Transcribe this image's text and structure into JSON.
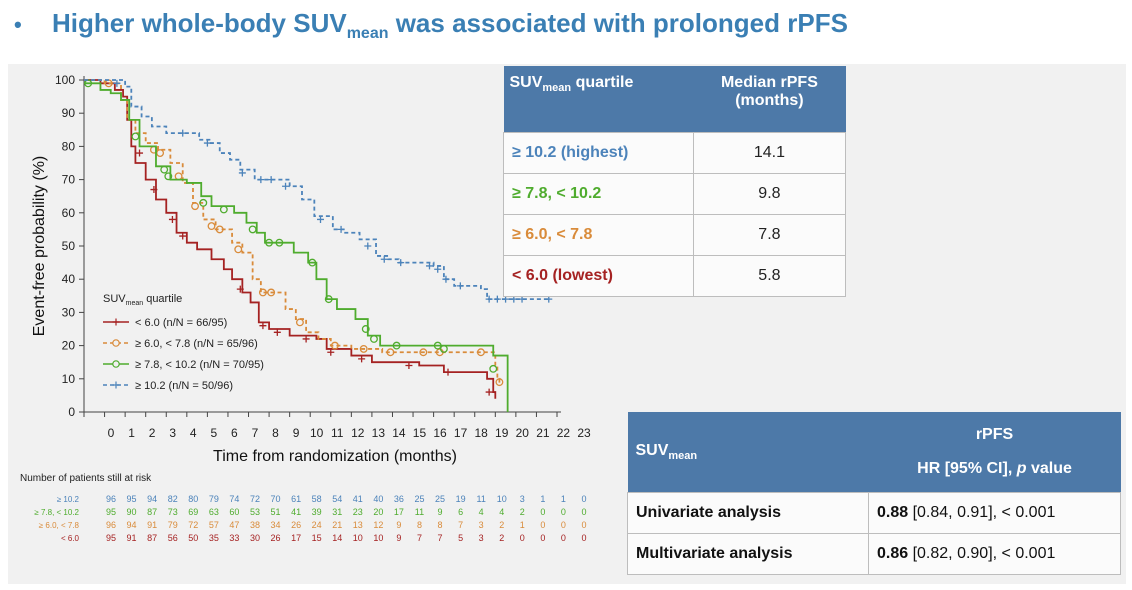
{
  "title": {
    "bullet": "•",
    "pre": "Higher whole-body SUV",
    "sub": "mean",
    "post": " was associated with prolonged rPFS"
  },
  "colors": {
    "title": "#3a7fb4",
    "header": "#4d79a8",
    "q_highest": "#4c83ba",
    "q_high": "#4fac2e",
    "q_mid": "#d98b3a",
    "q_low": "#a52222"
  },
  "chart_data": {
    "type": "line",
    "subtype": "kaplan-meier",
    "xlabel": "Time from randomization (months)",
    "ylabel": "Event-free probability (%)",
    "xlim": [
      0,
      23
    ],
    "ylim": [
      0,
      100
    ],
    "xticks": [
      0,
      1,
      2,
      3,
      4,
      5,
      6,
      7,
      8,
      9,
      10,
      11,
      12,
      13,
      14,
      15,
      16,
      17,
      18,
      19,
      20,
      21,
      22,
      23
    ],
    "yticks": [
      0,
      10,
      20,
      30,
      40,
      50,
      60,
      70,
      80,
      90,
      100
    ],
    "legend": {
      "title_pre": "SUV",
      "title_sub": "mean",
      "title_post": " quartile",
      "placement": "bottom-left"
    },
    "series": [
      {
        "name": "< 6.0 (n/N = 66/95)",
        "color": "#a52222",
        "marker": "plus",
        "dash": false,
        "points": [
          [
            0,
            100
          ],
          [
            0.8,
            99
          ],
          [
            1.5,
            97
          ],
          [
            1.9,
            95
          ],
          [
            2.1,
            88
          ],
          [
            2.3,
            80
          ],
          [
            2.5,
            75
          ],
          [
            3,
            70
          ],
          [
            3.5,
            64
          ],
          [
            4,
            60
          ],
          [
            4.5,
            54
          ],
          [
            5,
            51
          ],
          [
            5.5,
            49
          ],
          [
            6.2,
            46
          ],
          [
            6.8,
            43
          ],
          [
            7.2,
            40
          ],
          [
            7.7,
            36
          ],
          [
            8.1,
            33
          ],
          [
            8.5,
            27
          ],
          [
            9,
            25
          ],
          [
            10,
            23
          ],
          [
            11.3,
            22
          ],
          [
            11.8,
            19
          ],
          [
            13,
            17
          ],
          [
            14,
            15
          ],
          [
            16.3,
            14
          ],
          [
            17.5,
            12
          ],
          [
            19.6,
            10
          ],
          [
            19.9,
            6
          ],
          [
            20,
            4
          ]
        ],
        "censored": [
          [
            2.7,
            78
          ],
          [
            3.4,
            67
          ],
          [
            4.3,
            58
          ],
          [
            4.8,
            53
          ],
          [
            7.6,
            37
          ],
          [
            8.7,
            26
          ],
          [
            9.4,
            24
          ],
          [
            10.8,
            22
          ],
          [
            12,
            18
          ],
          [
            13.5,
            16
          ],
          [
            15.8,
            14
          ],
          [
            17.7,
            12
          ],
          [
            19.7,
            6
          ]
        ]
      },
      {
        "name": "≥ 6.0, < 7.8 (n/N = 65/96)",
        "color": "#d98b3a",
        "marker": "circle",
        "dash": true,
        "points": [
          [
            0,
            100
          ],
          [
            1,
            99
          ],
          [
            1.8,
            94
          ],
          [
            2.1,
            88
          ],
          [
            2.5,
            84
          ],
          [
            3,
            81
          ],
          [
            3.6,
            79
          ],
          [
            4.2,
            75
          ],
          [
            4.8,
            69
          ],
          [
            5.3,
            63
          ],
          [
            5.8,
            58
          ],
          [
            6.4,
            55
          ],
          [
            7.2,
            51
          ],
          [
            7.7,
            48
          ],
          [
            8.2,
            40
          ],
          [
            8.6,
            36
          ],
          [
            9.3,
            36
          ],
          [
            9.8,
            31
          ],
          [
            10.3,
            28
          ],
          [
            10.8,
            24
          ],
          [
            11.4,
            22
          ],
          [
            12,
            20
          ],
          [
            13,
            19
          ],
          [
            14.5,
            18
          ],
          [
            19.9,
            18
          ],
          [
            20,
            14
          ],
          [
            20.1,
            10
          ],
          [
            20.2,
            8
          ]
        ],
        "censored": [
          [
            1.2,
            99
          ],
          [
            3.4,
            79
          ],
          [
            3.7,
            78
          ],
          [
            4.6,
            71
          ],
          [
            5.4,
            62
          ],
          [
            6.2,
            56
          ],
          [
            6.6,
            55
          ],
          [
            7.5,
            49
          ],
          [
            8.7,
            36
          ],
          [
            9.1,
            36
          ],
          [
            10.5,
            27
          ],
          [
            12.2,
            20
          ],
          [
            13.6,
            19
          ],
          [
            14.9,
            18
          ],
          [
            16.5,
            18
          ],
          [
            17.3,
            18
          ],
          [
            19.3,
            18
          ],
          [
            20.2,
            9
          ]
        ]
      },
      {
        "name": "≥ 7.8, < 10.2 (n/N = 70/95)",
        "color": "#4fac2e",
        "marker": "circle",
        "dash": false,
        "points": [
          [
            0,
            99
          ],
          [
            0.8,
            97
          ],
          [
            1.3,
            96
          ],
          [
            1.8,
            94
          ],
          [
            2.2,
            88
          ],
          [
            2.7,
            80
          ],
          [
            3.5,
            74
          ],
          [
            4.2,
            70
          ],
          [
            5,
            69
          ],
          [
            5.7,
            65
          ],
          [
            6.2,
            62
          ],
          [
            7.3,
            60
          ],
          [
            7.9,
            57
          ],
          [
            8.4,
            54
          ],
          [
            8.8,
            51
          ],
          [
            9.7,
            51
          ],
          [
            10.2,
            48
          ],
          [
            10.9,
            45
          ],
          [
            11.3,
            40
          ],
          [
            11.8,
            34
          ],
          [
            12.3,
            31
          ],
          [
            13.2,
            28
          ],
          [
            13.8,
            23
          ],
          [
            14.4,
            20
          ],
          [
            19.7,
            20
          ],
          [
            19.9,
            17
          ],
          [
            20.6,
            0
          ]
        ],
        "censored": [
          [
            0.2,
            99
          ],
          [
            2.5,
            83
          ],
          [
            3.9,
            73
          ],
          [
            4.1,
            71
          ],
          [
            5.8,
            63
          ],
          [
            6.8,
            61
          ],
          [
            8.2,
            55
          ],
          [
            9,
            51
          ],
          [
            9.5,
            51
          ],
          [
            11.1,
            45
          ],
          [
            11.9,
            34
          ],
          [
            13.7,
            25
          ],
          [
            14.1,
            22
          ],
          [
            15.2,
            20
          ],
          [
            17.2,
            20
          ],
          [
            17.5,
            19
          ],
          [
            19.9,
            13
          ]
        ]
      },
      {
        "name": "≥ 10.2 (n/N = 50/96)",
        "color": "#4c83ba",
        "marker": "plus",
        "dash": true,
        "points": [
          [
            0,
            100
          ],
          [
            1.2,
            100
          ],
          [
            2,
            98
          ],
          [
            2.3,
            92
          ],
          [
            2.8,
            89
          ],
          [
            3.3,
            86
          ],
          [
            4,
            84
          ],
          [
            5.3,
            84
          ],
          [
            5.6,
            82
          ],
          [
            6.1,
            81
          ],
          [
            6.6,
            78
          ],
          [
            7.1,
            76
          ],
          [
            7.6,
            73
          ],
          [
            8.3,
            70
          ],
          [
            9.4,
            70
          ],
          [
            10,
            68
          ],
          [
            10.6,
            64
          ],
          [
            11.2,
            59
          ],
          [
            12.1,
            55
          ],
          [
            12.7,
            54
          ],
          [
            13.4,
            52
          ],
          [
            14.2,
            47
          ],
          [
            14.8,
            46
          ],
          [
            15.3,
            45
          ],
          [
            17,
            44
          ],
          [
            17.5,
            40
          ],
          [
            18,
            38
          ],
          [
            19.3,
            37
          ],
          [
            19.6,
            34
          ],
          [
            22.6,
            34
          ]
        ],
        "censored": [
          [
            1.6,
            99
          ],
          [
            4.8,
            84
          ],
          [
            6,
            81
          ],
          [
            7.7,
            72
          ],
          [
            8.6,
            70
          ],
          [
            9.1,
            70
          ],
          [
            9.8,
            68
          ],
          [
            11.5,
            58
          ],
          [
            12.5,
            55
          ],
          [
            13.8,
            50
          ],
          [
            14.6,
            46
          ],
          [
            15.4,
            45
          ],
          [
            16.8,
            44
          ],
          [
            17.2,
            43
          ],
          [
            17.6,
            40
          ],
          [
            18.3,
            38
          ],
          [
            19.7,
            34
          ],
          [
            20.1,
            34
          ],
          [
            20.5,
            34
          ],
          [
            20.9,
            34
          ],
          [
            21.3,
            34
          ],
          [
            22.6,
            34
          ]
        ]
      }
    ],
    "risk_table": {
      "heading": "Number of patients still at risk",
      "rows": [
        {
          "label": "≥ 10.2",
          "color": "#4c83ba",
          "values": [
            "96",
            "95",
            "94",
            "82",
            "80",
            "79",
            "74",
            "72",
            "70",
            "61",
            "58",
            "54",
            "41",
            "40",
            "36",
            "25",
            "25",
            "19",
            "11",
            "10",
            "3",
            "1",
            "1",
            "0"
          ]
        },
        {
          "label": "≥ 7.8, < 10.2",
          "color": "#4fac2e",
          "values": [
            "95",
            "90",
            "87",
            "73",
            "69",
            "63",
            "60",
            "53",
            "51",
            "41",
            "39",
            "31",
            "23",
            "20",
            "17",
            "11",
            "9",
            "6",
            "4",
            "4",
            "2",
            "0",
            "0",
            "0"
          ]
        },
        {
          "label": "≥ 6.0, < 7.8",
          "color": "#d98b3a",
          "values": [
            "96",
            "94",
            "91",
            "79",
            "72",
            "57",
            "47",
            "38",
            "34",
            "26",
            "24",
            "21",
            "13",
            "12",
            "9",
            "8",
            "8",
            "7",
            "3",
            "2",
            "1",
            "0",
            "0",
            "0"
          ]
        },
        {
          "label": "< 6.0",
          "color": "#a52222",
          "values": [
            "95",
            "91",
            "87",
            "56",
            "50",
            "35",
            "33",
            "30",
            "26",
            "17",
            "15",
            "14",
            "10",
            "10",
            "9",
            "7",
            "7",
            "5",
            "3",
            "2",
            "0",
            "0",
            "0",
            "0"
          ]
        }
      ]
    }
  },
  "table_median": {
    "header_col1_pre": "SUV",
    "header_col1_sub": "mean",
    "header_col1_post": " quartile",
    "header_col2_line1": "Median rPFS",
    "header_col2_line2": "(months)",
    "rows": [
      {
        "label": "≥ 10.2 (highest)",
        "value": "14.1",
        "color": "#4c83ba"
      },
      {
        "label": "≥ 7.8, < 10.2",
        "value": "9.8",
        "color": "#4fac2e"
      },
      {
        "label": "≥ 6.0, < 7.8",
        "value": "7.8",
        "color": "#d98b3a"
      },
      {
        "label": "< 6.0 (lowest)",
        "value": "5.8",
        "color": "#a52222"
      }
    ]
  },
  "table_hr": {
    "header_col1_pre": "SUV",
    "header_col1_sub": "mean",
    "header_col2_line1": "rPFS",
    "header_col2_line2_a": "HR [95% CI], ",
    "header_col2_line2_b": "p",
    "header_col2_line2_c": " value",
    "rows": [
      {
        "label": "Univariate analysis",
        "hr": "0.88",
        "rest": " [0.84, 0.91], < 0.001"
      },
      {
        "label": "Multivariate analysis",
        "hr": "0.86",
        "rest": " [0.82, 0.90], < 0.001"
      }
    ]
  }
}
